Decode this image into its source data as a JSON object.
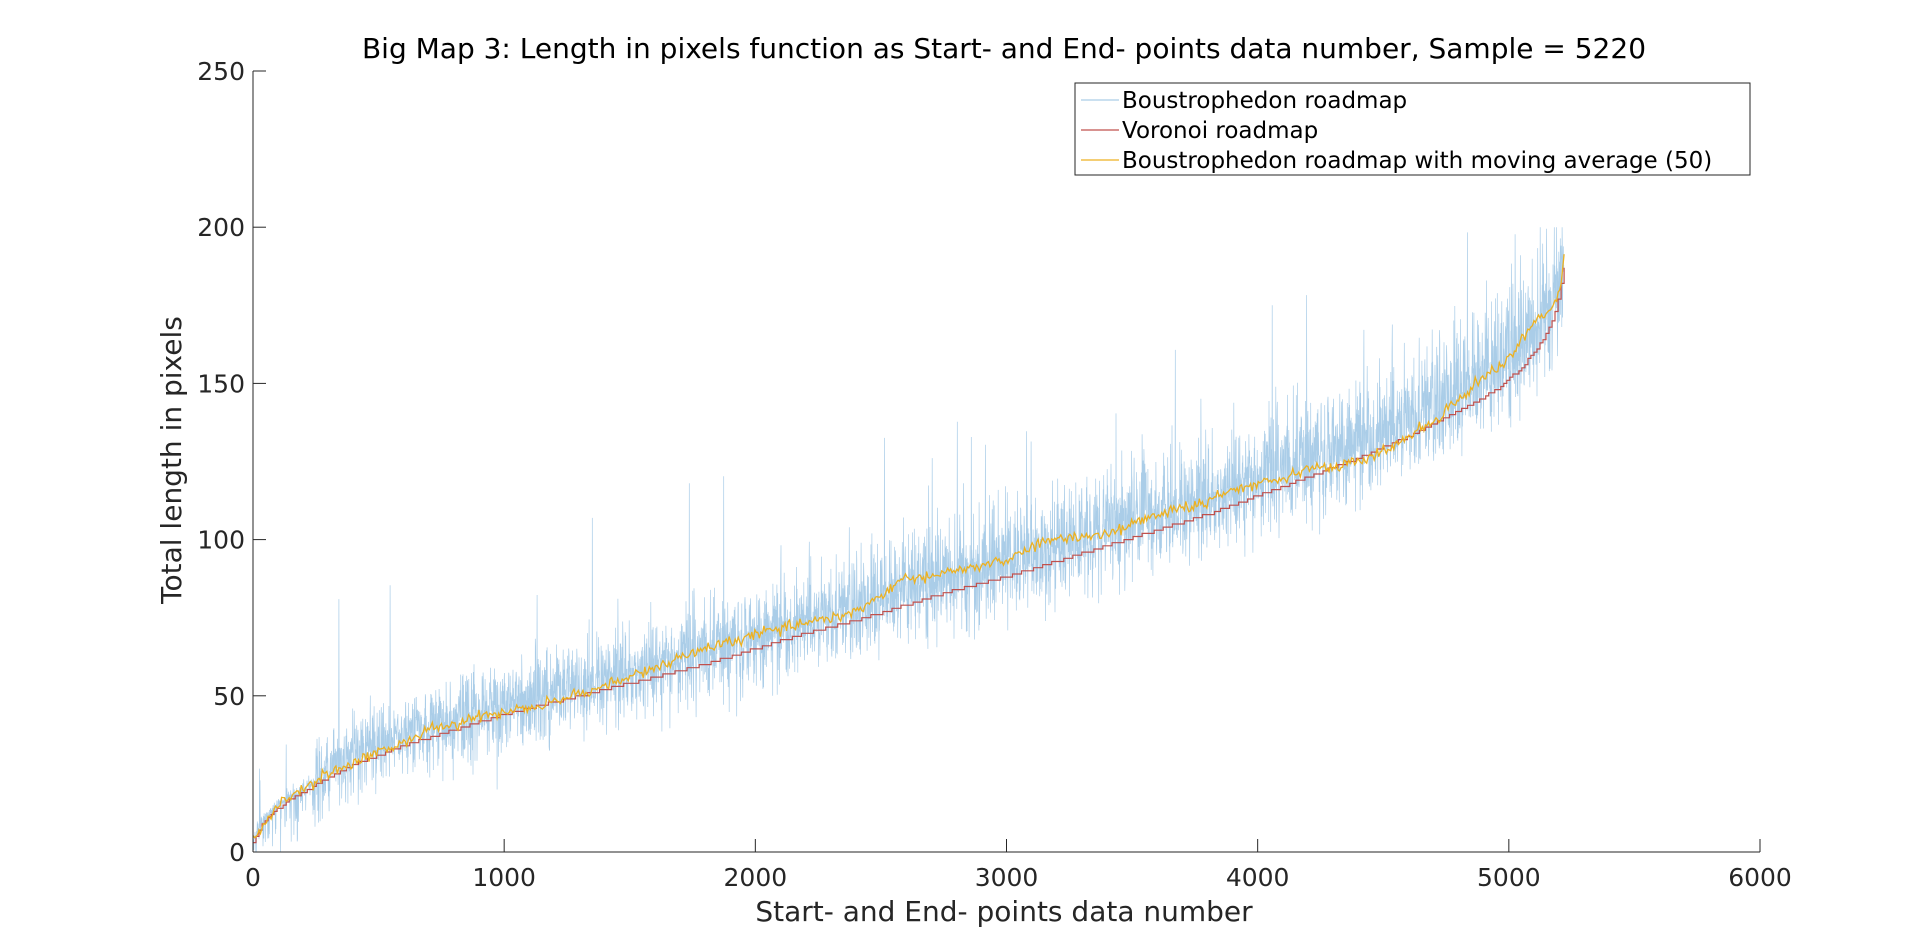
{
  "chart_data": {
    "type": "line",
    "title": "Big Map 3: Length in pixels function as Start- and End- points data number, Sample = 5220",
    "xlabel": "Start- and End- points data number",
    "ylabel": "Total length in pixels",
    "xlim": [
      0,
      6000
    ],
    "ylim": [
      0,
      250
    ],
    "xticks": [
      0,
      1000,
      2000,
      3000,
      4000,
      5000,
      6000
    ],
    "yticks": [
      0,
      50,
      100,
      150,
      200,
      250
    ],
    "grid": false,
    "legend_position": "top-right",
    "sample_size": 5220,
    "colors": {
      "boustrophedon": "#aacde8",
      "voronoi": "#c0504d",
      "moving_average": "#edb120",
      "axis": "#262626"
    },
    "series": [
      {
        "name": "Boustrophedon roadmap",
        "kind": "noisy",
        "noise_std_y": 11,
        "noise_max_y": 60,
        "y_max": 200
      },
      {
        "name": "Voronoi roadmap",
        "kind": "stepped"
      },
      {
        "name": "Boustrophedon roadmap with moving average (50)",
        "kind": "smooth"
      }
    ],
    "voronoi_curve": {
      "x": [
        0,
        30,
        60,
        100,
        150,
        200,
        300,
        400,
        500,
        600,
        800,
        1000,
        1200,
        1400,
        1600,
        1800,
        2000,
        2200,
        2400,
        2600,
        2800,
        3000,
        3200,
        3400,
        3600,
        3800,
        4000,
        4200,
        4400,
        4600,
        4800,
        4950,
        5050,
        5100,
        5150,
        5180,
        5200,
        5220
      ],
      "y": [
        3,
        8,
        11,
        14,
        17,
        19,
        24,
        28,
        31,
        34,
        39,
        44,
        48,
        52,
        56,
        60,
        65,
        70,
        74,
        79,
        84,
        88,
        93,
        98,
        103,
        108,
        114,
        120,
        126,
        133,
        141,
        148,
        155,
        160,
        166,
        172,
        178,
        187
      ]
    },
    "moving_average_curve": {
      "x": [
        0,
        100,
        200,
        300,
        400,
        500,
        600,
        700,
        800,
        900,
        1000,
        1100,
        1200,
        1300,
        1400,
        1500,
        1600,
        1700,
        1800,
        1900,
        2000,
        2100,
        2200,
        2300,
        2400,
        2500,
        2600,
        2700,
        2800,
        2900,
        3000,
        3100,
        3200,
        3300,
        3400,
        3500,
        3600,
        3700,
        3800,
        3900,
        4000,
        4100,
        4200,
        4300,
        4400,
        4500,
        4600,
        4700,
        4800,
        4900,
        5000,
        5100,
        5150,
        5200,
        5220
      ],
      "y": [
        3,
        15,
        20,
        25,
        29,
        32,
        35,
        39,
        41,
        43,
        45,
        46,
        48,
        51,
        53,
        56,
        59,
        62,
        65,
        67,
        70,
        71,
        74,
        75,
        77,
        82,
        88,
        88,
        90,
        92,
        93,
        98,
        100,
        101,
        102,
        105,
        108,
        110,
        112,
        116,
        118,
        120,
        123,
        123,
        125,
        128,
        133,
        138,
        145,
        152,
        158,
        170,
        172,
        178,
        190
      ]
    }
  }
}
